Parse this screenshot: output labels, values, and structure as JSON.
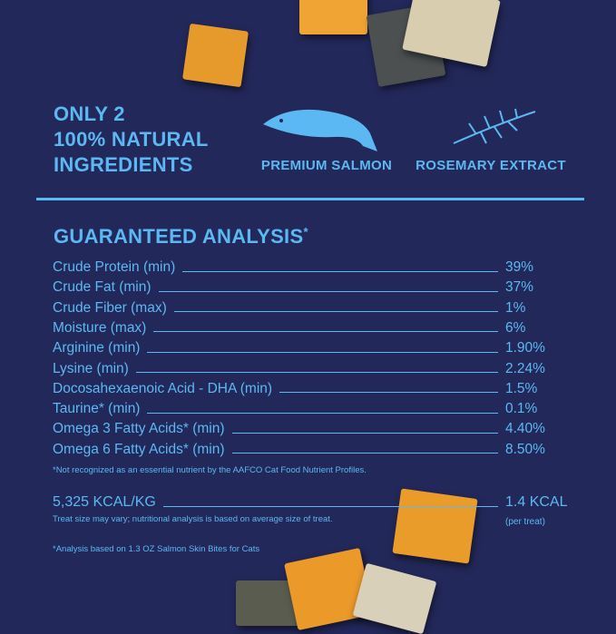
{
  "headline": [
    "ONLY 2",
    "100% NATURAL",
    "INGREDIENTS"
  ],
  "ingredients": [
    {
      "label": "PREMIUM SALMON",
      "icon": "salmon-icon"
    },
    {
      "label": "ROSEMARY EXTRACT",
      "icon": "rosemary-icon"
    }
  ],
  "analysis": {
    "title": "GUARANTEED ANALYSIS",
    "title_mark": "*",
    "rows": [
      {
        "name": "Crude Protein (min)",
        "value": "39%"
      },
      {
        "name": "Crude Fat (min)",
        "value": "37%"
      },
      {
        "name": "Crude Fiber (max)",
        "value": "1%"
      },
      {
        "name": "Moisture (max)",
        "value": "6%"
      },
      {
        "name": "Arginine (min)",
        "value": "1.90%"
      },
      {
        "name": "Lysine (min)",
        "value": "2.24%"
      },
      {
        "name": "Docosahexaenoic Acid - DHA (min)",
        "value": "1.5%"
      },
      {
        "name": "Taurine* (min)",
        "value": "0.1%"
      },
      {
        "name": "Omega 3 Fatty Acids* (min)",
        "value": "4.40%"
      },
      {
        "name": "Omega 6 Fatty Acids* (min)",
        "value": "8.50%"
      }
    ],
    "footnote": "*Not recognized as an essential nutrient by the AAFCO Cat Food Nutrient Profiles."
  },
  "calories": {
    "per_kg": "5,325 KCAL/KG",
    "note": "Treat size may vary; nutritional analysis is based on average size of treat.",
    "per_treat": "1.4 KCAL",
    "per_treat_note": "(per treat)"
  },
  "bottom_note": "*Analysis based on 1.3 OZ Salmon Skin Bites for Cats",
  "colors": {
    "background": "#23285a",
    "accent": "#5bb8f2"
  }
}
